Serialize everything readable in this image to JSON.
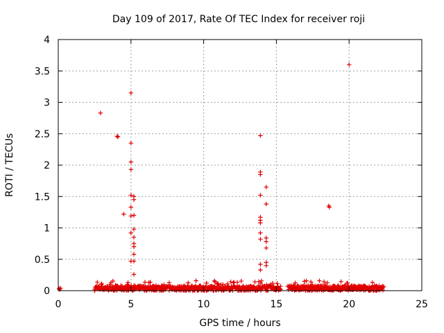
{
  "chart_data": {
    "type": "scatter",
    "title": "Day 109 of 2017, Rate Of TEC Index for receiver roji",
    "xlabel": "GPS time / hours",
    "ylabel": "ROTI / TECUs",
    "xlim": [
      0,
      25
    ],
    "ylim": [
      0,
      4
    ],
    "xticks": [
      0,
      5,
      10,
      15,
      20,
      25
    ],
    "yticks": [
      0,
      0.5,
      1,
      1.5,
      2,
      2.5,
      3,
      3.5,
      4
    ],
    "grid": true,
    "marker": "plus",
    "color": "#e00000",
    "series": [
      {
        "points": [
          [
            0.05,
            0.03
          ],
          [
            0.1,
            0.02
          ],
          [
            0.15,
            0.04
          ],
          [
            2.9,
            2.83
          ],
          [
            4.05,
            2.46
          ],
          [
            4.1,
            2.45
          ],
          [
            4.5,
            1.22
          ],
          [
            5.0,
            3.15
          ],
          [
            5.0,
            2.35
          ],
          [
            5.0,
            2.05
          ],
          [
            5.0,
            1.93
          ],
          [
            5.0,
            1.52
          ],
          [
            5.0,
            1.33
          ],
          [
            5.0,
            1.19
          ],
          [
            5.0,
            0.92
          ],
          [
            5.0,
            0.47
          ],
          [
            5.2,
            1.5
          ],
          [
            5.2,
            1.45
          ],
          [
            5.2,
            1.2
          ],
          [
            5.2,
            0.98
          ],
          [
            5.2,
            0.85
          ],
          [
            5.2,
            0.75
          ],
          [
            5.2,
            0.7
          ],
          [
            5.2,
            0.58
          ],
          [
            5.2,
            0.47
          ],
          [
            5.2,
            0.26
          ],
          [
            13.9,
            2.47
          ],
          [
            13.9,
            1.89
          ],
          [
            13.9,
            1.85
          ],
          [
            13.9,
            1.52
          ],
          [
            13.9,
            1.17
          ],
          [
            13.9,
            1.12
          ],
          [
            13.9,
            1.08
          ],
          [
            13.9,
            0.92
          ],
          [
            13.9,
            0.82
          ],
          [
            13.9,
            0.42
          ],
          [
            13.9,
            0.33
          ],
          [
            14.3,
            1.65
          ],
          [
            14.3,
            1.38
          ],
          [
            14.3,
            0.84
          ],
          [
            14.3,
            0.78
          ],
          [
            14.3,
            0.68
          ],
          [
            14.3,
            0.45
          ],
          [
            14.3,
            0.4
          ],
          [
            18.6,
            1.35
          ],
          [
            18.65,
            1.33
          ],
          [
            20.0,
            3.6
          ]
        ],
        "dense_band": {
          "x_ranges": [
            [
              2.5,
              15.3
            ],
            [
              15.8,
              22.4
            ]
          ],
          "typical_max": 0.08,
          "peak_max": 0.16
        }
      }
    ]
  }
}
